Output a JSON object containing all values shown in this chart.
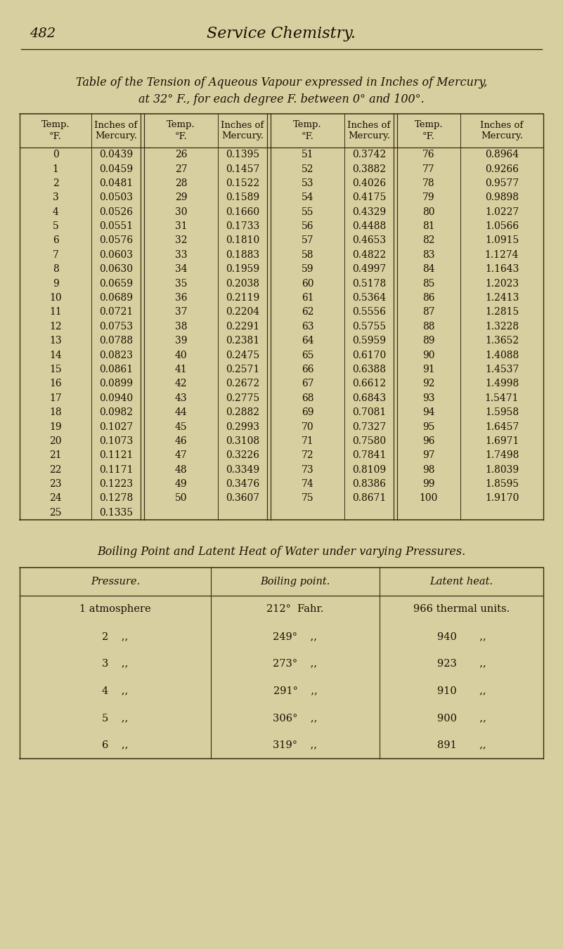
{
  "bg_color": "#d8cfa0",
  "page_number": "482",
  "page_title": "Service Chemistry.",
  "table1_title_line1": "Table of the Tension of Aqueous Vapour expressed in Inches of Mercury,",
  "table1_title_line2": "at 32° F., for each degree F. between 0° and 100°.",
  "col_headers_line1": [
    "Temp.",
    "Inches of",
    "Temp.",
    "Inches of",
    "Temp.",
    "Inches of",
    "Temp.",
    "Inches of"
  ],
  "col_headers_line2": [
    "°F.",
    "Mercury.",
    "°F.",
    "Mercury.",
    "°F.",
    "Mercury.",
    "°F.",
    "Mercury."
  ],
  "table1_data": [
    [
      0,
      "0.0439",
      26,
      "0.1395",
      51,
      "0.3742",
      76,
      "0.8964"
    ],
    [
      1,
      "0.0459",
      27,
      "0.1457",
      52,
      "0.3882",
      77,
      "0.9266"
    ],
    [
      2,
      "0.0481",
      28,
      "0.1522",
      53,
      "0.4026",
      78,
      "0.9577"
    ],
    [
      3,
      "0.0503",
      29,
      "0.1589",
      54,
      "0.4175",
      79,
      "0.9898"
    ],
    [
      4,
      "0.0526",
      30,
      "0.1660",
      55,
      "0.4329",
      80,
      "1.0227"
    ],
    [
      5,
      "0.0551",
      31,
      "0.1733",
      56,
      "0.4488",
      81,
      "1.0566"
    ],
    [
      6,
      "0.0576",
      32,
      "0.1810",
      57,
      "0.4653",
      82,
      "1.0915"
    ],
    [
      7,
      "0.0603",
      33,
      "0.1883",
      58,
      "0.4822",
      83,
      "1.1274"
    ],
    [
      8,
      "0.0630",
      34,
      "0.1959",
      59,
      "0.4997",
      84,
      "1.1643"
    ],
    [
      9,
      "0.0659",
      35,
      "0.2038",
      60,
      "0.5178",
      85,
      "1.2023"
    ],
    [
      10,
      "0.0689",
      36,
      "0.2119",
      61,
      "0.5364",
      86,
      "1.2413"
    ],
    [
      11,
      "0.0721",
      37,
      "0.2204",
      62,
      "0.5556",
      87,
      "1.2815"
    ],
    [
      12,
      "0.0753",
      38,
      "0.2291",
      63,
      "0.5755",
      88,
      "1.3228"
    ],
    [
      13,
      "0.0788",
      39,
      "0.2381",
      64,
      "0.5959",
      89,
      "1.3652"
    ],
    [
      14,
      "0.0823",
      40,
      "0.2475",
      65,
      "0.6170",
      90,
      "1.4088"
    ],
    [
      15,
      "0.0861",
      41,
      "0.2571",
      66,
      "0.6388",
      91,
      "1.4537"
    ],
    [
      16,
      "0.0899",
      42,
      "0.2672",
      67,
      "0.6612",
      92,
      "1.4998"
    ],
    [
      17,
      "0.0940",
      43,
      "0.2775",
      68,
      "0.6843",
      93,
      "1.5471"
    ],
    [
      18,
      "0.0982",
      44,
      "0.2882",
      69,
      "0.7081",
      94,
      "1.5958"
    ],
    [
      19,
      "0.1027",
      45,
      "0.2993",
      70,
      "0.7327",
      95,
      "1.6457"
    ],
    [
      20,
      "0.1073",
      46,
      "0.3108",
      71,
      "0.7580",
      96,
      "1.6971"
    ],
    [
      21,
      "0.1121",
      47,
      "0.3226",
      72,
      "0.7841",
      97,
      "1.7498"
    ],
    [
      22,
      "0.1171",
      48,
      "0.3349",
      73,
      "0.8109",
      98,
      "1.8039"
    ],
    [
      23,
      "0.1223",
      49,
      "0.3476",
      74,
      "0.8386",
      99,
      "1.8595"
    ],
    [
      24,
      "0.1278",
      50,
      "0.3607",
      75,
      "0.8671",
      100,
      "1.9170"
    ],
    [
      25,
      "0.1335",
      "",
      "",
      "",
      "",
      "",
      ""
    ]
  ],
  "table2_title": "Boiling Point and Latent Heat of Water under varying Pressures.",
  "table2_col_headers": [
    "Pressure.",
    "Boiling point.",
    "Latent heat."
  ],
  "table2_data_col0": [
    "1 atmosphere",
    "2    ,,",
    "3    ,,",
    "4    ,,",
    "5    ,,",
    "6    ,,"
  ],
  "table2_data_col1": [
    "212°  Fahr.",
    "249°    ,,",
    "273°    ,,",
    "291°    ,,",
    "306°    ,,",
    "319°    ,,"
  ],
  "table2_data_col2": [
    "966 thermal units.",
    "940       ,,",
    "923       ,,",
    "910       ,,",
    "900       ,,",
    "891       ,,"
  ],
  "text_color": "#1a0f00",
  "line_color": "#3a2a10"
}
